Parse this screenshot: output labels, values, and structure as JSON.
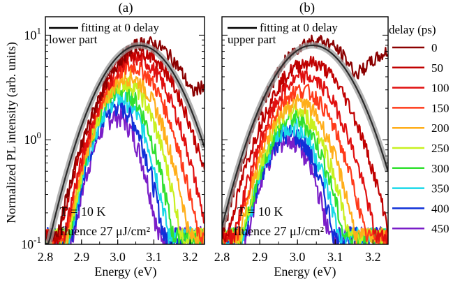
{
  "ylabel": "Normalized PL intensity (arb. units)",
  "legend": {
    "title": "delay (ps)",
    "entries": [
      {
        "label": "0",
        "color": "#8b0000"
      },
      {
        "label": "50",
        "color": "#c00000"
      },
      {
        "label": "100",
        "color": "#e01010"
      },
      {
        "label": "150",
        "color": "#ff3a1a"
      },
      {
        "label": "200",
        "color": "#ffae1a"
      },
      {
        "label": "250",
        "color": "#c8f020"
      },
      {
        "label": "300",
        "color": "#30e030"
      },
      {
        "label": "350",
        "color": "#18d8e8"
      },
      {
        "label": "400",
        "color": "#1030d8"
      },
      {
        "label": "450",
        "color": "#7a1ec8"
      }
    ]
  },
  "chart_data": [
    {
      "type": "line",
      "panel_label": "(a)",
      "region_label": "lower part",
      "fit_label": "fitting at 0 delay",
      "temperature_text": "T = 10 K",
      "fluence_text": "fluence 27 μJ/cm²",
      "xlabel": "Energy (eV)",
      "xlim": [
        2.8,
        3.24
      ],
      "xticks": [
        "2.8",
        "2.9",
        "3.0",
        "3.1",
        "3.2"
      ],
      "ylim": [
        0.1,
        15
      ],
      "yscale": "log",
      "yticks": [
        "10^-1",
        "10^0",
        "10^1"
      ],
      "series": [
        {
          "delay": "0",
          "peak_x": 3.08,
          "peak_y": 8.5,
          "width": 0.12
        },
        {
          "delay": "50",
          "peak_x": 3.06,
          "peak_y": 7.0,
          "width": 0.11
        },
        {
          "delay": "100",
          "peak_x": 3.05,
          "peak_y": 6.0,
          "width": 0.1
        },
        {
          "delay": "150",
          "peak_x": 3.04,
          "peak_y": 5.0,
          "width": 0.095
        },
        {
          "delay": "200",
          "peak_x": 3.03,
          "peak_y": 4.0,
          "width": 0.09
        },
        {
          "delay": "250",
          "peak_x": 3.02,
          "peak_y": 3.5,
          "width": 0.085
        },
        {
          "delay": "300",
          "peak_x": 3.01,
          "peak_y": 3.0,
          "width": 0.08
        },
        {
          "delay": "350",
          "peak_x": 3.005,
          "peak_y": 2.5,
          "width": 0.078
        },
        {
          "delay": "400",
          "peak_x": 3.0,
          "peak_y": 2.1,
          "width": 0.075
        },
        {
          "delay": "450",
          "peak_x": 2.995,
          "peak_y": 1.7,
          "width": 0.072
        }
      ],
      "fit": {
        "peak_x": 3.06,
        "peak_y": 8.0,
        "width": 0.12
      }
    },
    {
      "type": "line",
      "panel_label": "(b)",
      "region_label": "upper part",
      "fit_label": "fitting at 0 delay",
      "temperature_text": "T = 10 K",
      "fluence_text": "fluence 27 μJ/cm²",
      "xlabel": "Energy (eV)",
      "xlim": [
        2.8,
        3.24
      ],
      "xticks": [
        "2.8",
        "2.9",
        "3.0",
        "3.1",
        "3.2"
      ],
      "ylim": [
        0.1,
        15
      ],
      "yscale": "log",
      "series": [
        {
          "delay": "0",
          "peak_x": 3.05,
          "peak_y": 9.0,
          "width": 0.12
        },
        {
          "delay": "50",
          "peak_x": 3.03,
          "peak_y": 5.5,
          "width": 0.11
        },
        {
          "delay": "100",
          "peak_x": 3.02,
          "peak_y": 4.0,
          "width": 0.1
        },
        {
          "delay": "150",
          "peak_x": 3.01,
          "peak_y": 3.0,
          "width": 0.095
        },
        {
          "delay": "200",
          "peak_x": 3.0,
          "peak_y": 2.3,
          "width": 0.09
        },
        {
          "delay": "250",
          "peak_x": 2.995,
          "peak_y": 1.9,
          "width": 0.085
        },
        {
          "delay": "300",
          "peak_x": 2.99,
          "peak_y": 1.6,
          "width": 0.082
        },
        {
          "delay": "350",
          "peak_x": 2.985,
          "peak_y": 1.35,
          "width": 0.08
        },
        {
          "delay": "400",
          "peak_x": 2.98,
          "peak_y": 1.15,
          "width": 0.078
        },
        {
          "delay": "450",
          "peak_x": 2.975,
          "peak_y": 1.0,
          "width": 0.075
        }
      ],
      "fit": {
        "peak_x": 3.04,
        "peak_y": 8.0,
        "width": 0.12
      }
    }
  ]
}
